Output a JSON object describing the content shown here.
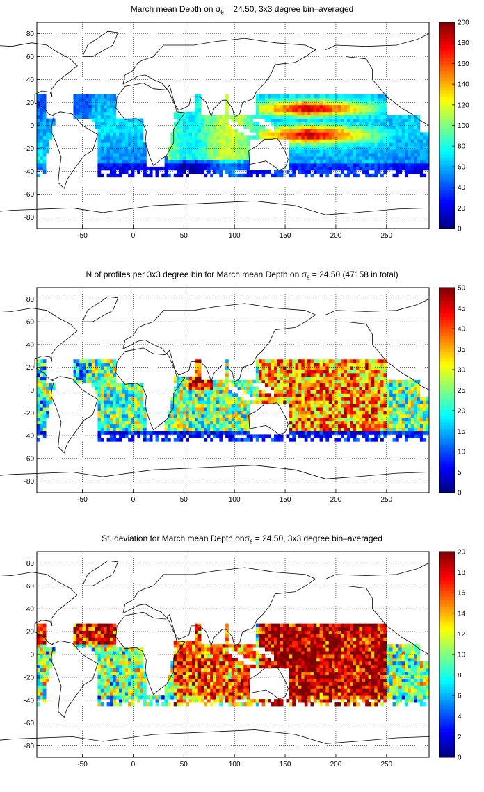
{
  "chart_data": [
    {
      "type": "heatmap",
      "title_parts": [
        "March mean Depth on ",
        "σ",
        "θ",
        " = 24.50, 3x3 degree bin–averaged"
      ],
      "colorbar_range": [
        0,
        200
      ],
      "colorbar_ticks": [
        "0",
        "20",
        "40",
        "60",
        "80",
        "100",
        "120",
        "140",
        "160",
        "180",
        "200"
      ],
      "x_ticks": [
        "-50",
        "0",
        "50",
        "100",
        "150",
        "200",
        "250"
      ],
      "y_ticks": [
        "80",
        "60",
        "40",
        "20",
        "0",
        "-20",
        "-40",
        "-60",
        "-80"
      ],
      "x_range": [
        -95,
        292
      ],
      "y_range": [
        -90,
        90
      ],
      "grid": "dotted",
      "colormap": "jet",
      "pattern": "depth"
    },
    {
      "type": "heatmap",
      "title_parts": [
        "N of profiles per 3x3 degree bin for March mean Depth on ",
        "σ",
        "θ",
        " = 24.50 (47158 in total)"
      ],
      "colorbar_range": [
        0,
        50
      ],
      "colorbar_ticks": [
        "0",
        "5",
        "10",
        "15",
        "20",
        "25",
        "30",
        "35",
        "40",
        "45",
        "50"
      ],
      "x_ticks": [
        "-50",
        "0",
        "50",
        "100",
        "150",
        "200",
        "250"
      ],
      "y_ticks": [
        "80",
        "60",
        "40",
        "20",
        "0",
        "-20",
        "-40",
        "-60",
        "-80"
      ],
      "x_range": [
        -95,
        292
      ],
      "y_range": [
        -90,
        90
      ],
      "grid": "dotted",
      "colormap": "jet",
      "pattern": "count"
    },
    {
      "type": "heatmap",
      "title_parts": [
        "St. deviation for March mean Depth on",
        "σ",
        "θ",
        " = 24.50, 3x3 degree bin–averaged"
      ],
      "colorbar_range": [
        0,
        20
      ],
      "colorbar_ticks": [
        "0",
        "2",
        "4",
        "6",
        "8",
        "10",
        "12",
        "14",
        "16",
        "18",
        "20"
      ],
      "x_ticks": [
        "-50",
        "0",
        "50",
        "100",
        "150",
        "200",
        "250"
      ],
      "y_ticks": [
        "80",
        "60",
        "40",
        "20",
        "0",
        "-20",
        "-40",
        "-60",
        "-80"
      ],
      "x_range": [
        -95,
        292
      ],
      "y_range": [
        -90,
        90
      ],
      "grid": "dotted",
      "colormap": "jet",
      "pattern": "std"
    }
  ]
}
